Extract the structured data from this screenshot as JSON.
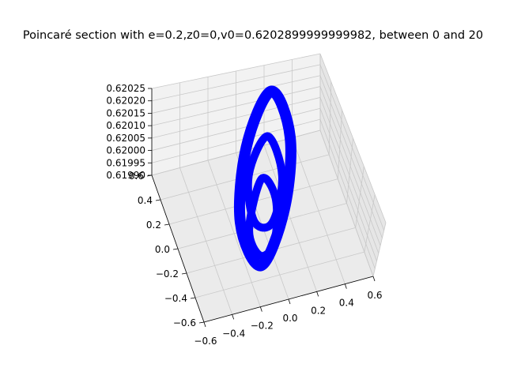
{
  "chart_data": {
    "type": "scatter",
    "projection": "3d",
    "title": "Poincaré section with e=0.2,z0=0,v0=0.6202899999999982, between 0 and 20",
    "xlabel": "",
    "ylabel": "",
    "zlabel": "",
    "x_ticks": [
      "−0.6",
      "−0.4",
      "−0.2",
      "0.0",
      "0.2",
      "0.4",
      "0.6"
    ],
    "y_ticks": [
      "−0.6",
      "−0.4",
      "−0.2",
      "0.0",
      "0.2",
      "0.4",
      "0.6"
    ],
    "z_ticks": [
      "0.61990",
      "0.61995",
      "0.62000",
      "0.62005",
      "0.62010",
      "0.62015",
      "0.62020",
      "0.62025"
    ],
    "xlim": [
      -0.6,
      0.6
    ],
    "ylim": [
      -0.6,
      0.6
    ],
    "zlim": [
      0.6199,
      0.62025
    ],
    "grid": true,
    "legend": "none",
    "series": [
      {
        "color": "#0000ff",
        "marker": "point",
        "curves": [
          {
            "x": [
              0.02,
              0.3,
              0.27,
              -0.0,
              -0.3,
              -0.27,
              0.02
            ],
            "y": [
              0.6,
              0.35,
              -0.1,
              -0.48,
              -0.25,
              0.22,
              0.6
            ],
            "z": [
              0.6201,
              0.6201,
              0.6201,
              0.6201,
              0.6201,
              0.6201,
              0.6201
            ]
          },
          {
            "x": [
              0.0,
              0.22,
              0.12,
              -0.12,
              -0.22,
              0.0
            ],
            "y": [
              0.32,
              0.1,
              -0.2,
              -0.22,
              0.05,
              0.32
            ],
            "z": [
              0.6201,
              0.6201,
              0.6201,
              0.6201,
              0.6201,
              0.6201
            ]
          },
          {
            "x": [
              -0.05,
              0.15,
              0.16,
              -0.02,
              -0.18,
              -0.05
            ],
            "y": [
              0.05,
              -0.05,
              -0.32,
              -0.42,
              -0.28,
              0.05
            ],
            "z": [
              0.6201,
              0.6201,
              0.6201,
              0.6201,
              0.6201,
              0.6201
            ]
          }
        ]
      }
    ]
  }
}
